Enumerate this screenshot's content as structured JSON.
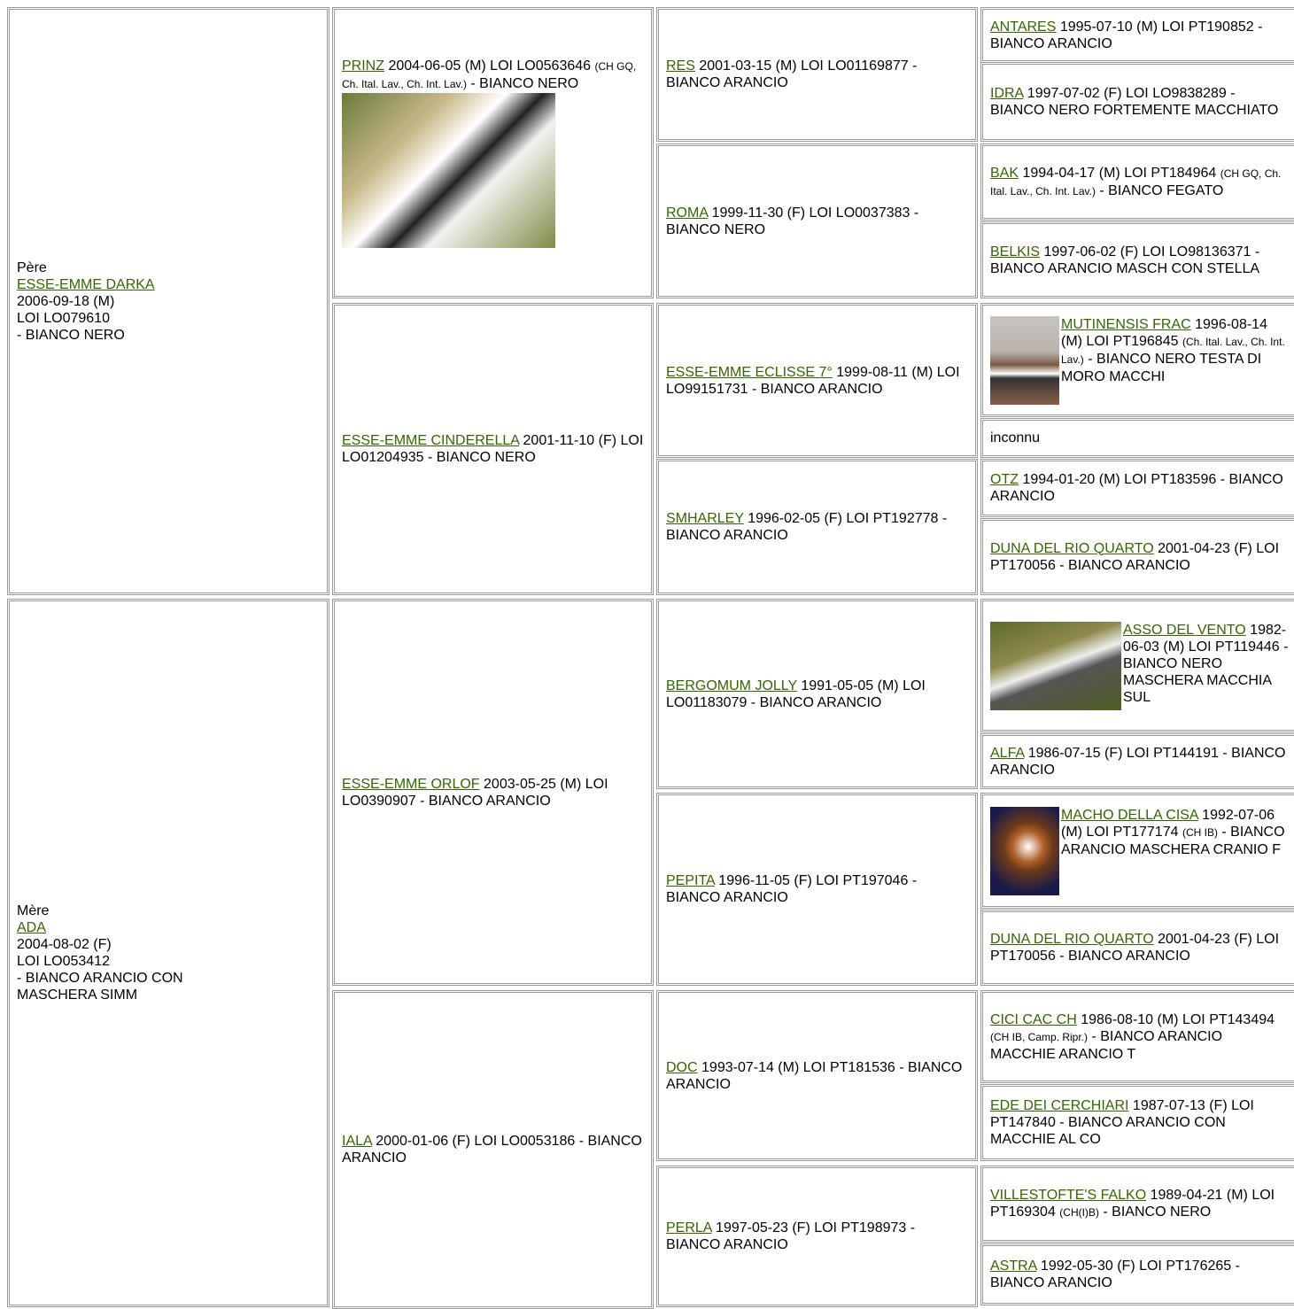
{
  "sire": {
    "label": "Père",
    "name": "ESSE-EMME DARKA",
    "lines": [
      "2006-09-18 (M)",
      "LOI LO079610",
      "- BIANCO NERO"
    ]
  },
  "dam": {
    "label": "Mère",
    "name": "ADA",
    "lines": [
      "2004-08-02 (F)",
      "LOI LO053412",
      "- BIANCO ARANCIO CON MASCHERA SIMM"
    ]
  },
  "generation_2": [
    {
      "name": "PRINZ",
      "info": "2004-06-05 (M) LOI LO0563646",
      "titles": "(CH GQ, Ch. Ital. Lav., Ch. Int. Lav.)",
      "coat": "- BIANCO NERO"
    },
    {
      "name": "ESSE-EMME CINDERELLA",
      "info": "2001-11-10 (F) LOI LO01204935 - BIANCO NERO"
    },
    {
      "name": "ESSE-EMME ORLOF",
      "info": "2003-05-25 (M) LOI LO0390907 - BIANCO ARANCIO"
    },
    {
      "name": "IALA",
      "info": "2000-01-06 (F) LOI LO0053186 - BIANCO ARANCIO"
    }
  ],
  "generation_3": [
    {
      "name": "RES",
      "info": "2001-03-15 (M) LOI LO01169877 - BIANCO ARANCIO"
    },
    {
      "name": "ROMA",
      "info": "1999-11-30 (F) LOI LO0037383 - BIANCO NERO"
    },
    {
      "name": "ESSE-EMME ECLISSE 7°",
      "info": "1999-08-11 (M) LOI LO99151731 - BIANCO ARANCIO"
    },
    {
      "name": "SMHARLEY",
      "info": "1996-02-05 (F) LOI PT192778 - BIANCO ARANCIO"
    },
    {
      "name": "BERGOMUM JOLLY",
      "info": "1991-05-05 (M) LOI LO01183079 - BIANCO ARANCIO"
    },
    {
      "name": "PEPITA",
      "info": "1996-11-05 (F) LOI PT197046 - BIANCO ARANCIO"
    },
    {
      "name": "DOC",
      "info": "1993-07-14 (M) LOI PT181536 - BIANCO ARANCIO"
    },
    {
      "name": "PERLA",
      "info": "1997-05-23 (F) LOI PT198973 - BIANCO ARANCIO"
    }
  ],
  "generation_4": [
    {
      "name": "ANTARES",
      "info": "1995-07-10 (M) LOI PT190852 - BIANCO ARANCIO"
    },
    {
      "name": "IDRA",
      "info": "1997-07-02 (F) LOI LO9838289 - BIANCO NERO FORTEMENTE MACCHIATO"
    },
    {
      "name": "BAK",
      "info": "1994-04-17 (M) LOI PT184964",
      "titles": "(CH GQ, Ch. Ital. Lav., Ch. Int. Lav.)",
      "coat": "- BIANCO FEGATO"
    },
    {
      "name": "BELKIS",
      "info": "1997-06-02 (F) LOI LO98136371 - BIANCO ARANCIO MASCH CON STELLA"
    },
    {
      "name": "MUTINENSIS FRAC",
      "info": "1996-08-14 (M) LOI PT196845",
      "titles": "(Ch. Ital. Lav., Ch. Int. Lav.)",
      "coat": "- BIANCO NERO TESTA DI MORO MACCHI"
    },
    {
      "text": "inconnu"
    },
    {
      "name": "OTZ",
      "info": "1994-01-20 (M) LOI PT183596 - BIANCO ARANCIO"
    },
    {
      "name": "DUNA DEL RIO QUARTO",
      "info": "2001-04-23 (F) LOI PT170056 - BIANCO ARANCIO"
    },
    {
      "name": "ASSO DEL VENTO",
      "info": "1982-06-03 (M) LOI PT119446 - BIANCO NERO MASCHERA MACCHIA SUL"
    },
    {
      "name": "ALFA",
      "info": "1986-07-15 (F) LOI PT144191 - BIANCO ARANCIO"
    },
    {
      "name": "MACHO DELLA CISA",
      "info": "1992-07-06 (M) LOI PT177174",
      "titles": "(CH IB)",
      "coat": "- BIANCO ARANCIO MASCHERA CRANIO F"
    },
    {
      "name": "DUNA DEL RIO QUARTO",
      "info": "2001-04-23 (F) LOI PT170056 - BIANCO ARANCIO"
    },
    {
      "name": "CICI CAC CH",
      "info": "1986-08-10 (M) LOI PT143494",
      "titles": "(CH IB, Camp. Ripr.)",
      "coat": "- BIANCO ARANCIO MACCHIE ARANCIO T"
    },
    {
      "name": "EDE DEI CERCHIARI",
      "info": "1987-07-13 (F) LOI PT147840 - BIANCO ARANCIO CON MACCHIE AL CO"
    },
    {
      "name": "VILLESTOFTE'S FALKO",
      "info": "1989-04-21 (M) LOI PT169304",
      "titles": "(CH(I)B)",
      "coat": "- BIANCO NERO"
    },
    {
      "name": "ASTRA",
      "info": "1992-05-30 (F) LOI PT176265 - BIANCO ARANCIO"
    }
  ]
}
